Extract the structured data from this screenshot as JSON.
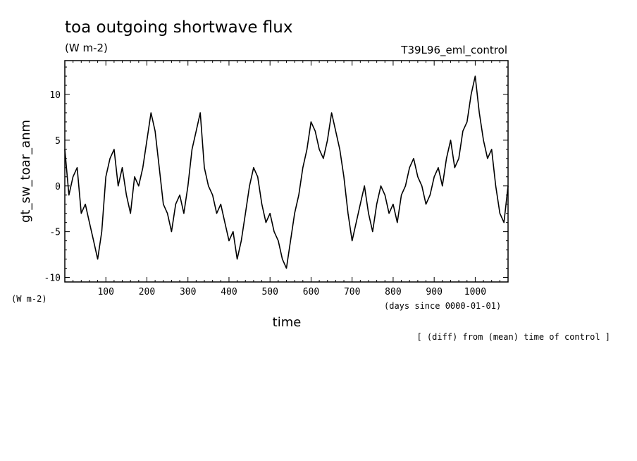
{
  "chart_data": {
    "type": "line",
    "title": "toa outgoing shortwave flux",
    "units": "(W m-2)",
    "experiment": "T39L96_eml_control",
    "ylabel": "gt_sw_toar_anm",
    "yunits": "(W m-2)",
    "xlabel": "time",
    "xunits": "(days since 0000-01-01)",
    "note": "[ (diff) from (mean) time of control ]",
    "xlim": [
      0,
      1080
    ],
    "ylim": [
      -10.5,
      13.7
    ],
    "x_ticks": [
      100,
      200,
      300,
      400,
      500,
      600,
      700,
      800,
      900,
      1000
    ],
    "y_ticks": [
      -10,
      -5,
      0,
      5,
      10
    ],
    "grid": false,
    "series": [
      {
        "name": "",
        "line_color": "#000000",
        "x": [
          0,
          10,
          20,
          30,
          40,
          50,
          60,
          70,
          80,
          90,
          100,
          110,
          120,
          130,
          140,
          150,
          160,
          170,
          180,
          190,
          200,
          210,
          220,
          230,
          240,
          250,
          260,
          270,
          280,
          290,
          300,
          310,
          320,
          330,
          340,
          350,
          360,
          370,
          380,
          390,
          400,
          410,
          420,
          430,
          440,
          450,
          460,
          470,
          480,
          490,
          500,
          510,
          520,
          530,
          540,
          550,
          560,
          570,
          580,
          590,
          600,
          610,
          620,
          630,
          640,
          650,
          660,
          670,
          680,
          690,
          700,
          710,
          720,
          730,
          740,
          750,
          760,
          770,
          780,
          790,
          800,
          810,
          820,
          830,
          840,
          850,
          860,
          870,
          880,
          890,
          900,
          910,
          920,
          930,
          940,
          950,
          960,
          970,
          980,
          990,
          1000,
          1010,
          1020,
          1030,
          1040,
          1050,
          1060,
          1070,
          1080
        ],
        "values": [
          4,
          -1,
          1,
          2,
          -3,
          -2,
          -4,
          -6,
          -8,
          -5,
          1,
          3,
          4,
          0,
          2,
          -1,
          -3,
          1,
          0,
          2,
          5,
          8,
          6,
          2,
          -2,
          -3,
          -5,
          -2,
          -1,
          -3,
          0,
          4,
          6,
          8,
          2,
          0,
          -1,
          -3,
          -2,
          -4,
          -6,
          -5,
          -8,
          -6,
          -3,
          0,
          2,
          1,
          -2,
          -4,
          -3,
          -5,
          -6,
          -8,
          -9,
          -6,
          -3,
          -1,
          2,
          4,
          7,
          6,
          4,
          3,
          5,
          8,
          6,
          4,
          1,
          -3,
          -6,
          -4,
          -2,
          0,
          -3,
          -5,
          -2,
          0,
          -1,
          -3,
          -2,
          -4,
          -1,
          0,
          2,
          3,
          1,
          0,
          -2,
          -1,
          1,
          2,
          0,
          3,
          5,
          2,
          3,
          6,
          7,
          10,
          12,
          8,
          5,
          3,
          4,
          0,
          -3,
          -4,
          0
        ]
      }
    ]
  }
}
